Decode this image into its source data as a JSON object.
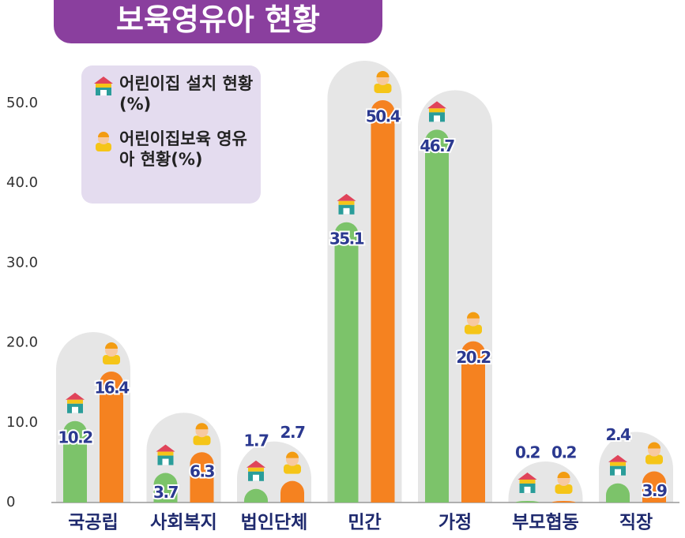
{
  "chart_data": {
    "type": "bar",
    "title": "보육영유아 현황",
    "categories": [
      "국공립",
      "사회복지",
      "법인단체",
      "민간",
      "가정",
      "부모협동",
      "직장"
    ],
    "series": [
      {
        "name": "어린이집 설치 현황(%)",
        "color": "#7cc36a",
        "values": [
          10.2,
          3.7,
          1.7,
          35.1,
          46.7,
          0.2,
          2.4
        ]
      },
      {
        "name": "어린이집보육 영유아 현황(%)",
        "color": "#f58220",
        "values": [
          16.4,
          6.3,
          2.7,
          50.4,
          20.2,
          0.2,
          3.9
        ]
      }
    ],
    "ylim": [
      0,
      50
    ],
    "yticks": [
      0,
      {
        "value": 10,
        "label": "10.0"
      },
      {
        "value": 20,
        "label": "20.0"
      },
      {
        "value": 30,
        "label": "30.0"
      },
      {
        "value": 40,
        "label": "40.0"
      },
      {
        "value": 50,
        "label": "50.0"
      }
    ],
    "legend": "top-left"
  }
}
